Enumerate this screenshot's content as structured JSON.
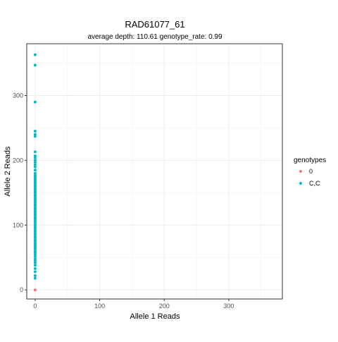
{
  "chart_data": {
    "type": "scatter",
    "title": "RAD61077_61",
    "subtitle": "average depth:  110.61  genotype_rate:  0.99",
    "xlabel": "Allele 1 Reads",
    "ylabel": "Allele 2 Reads",
    "xlim": [
      -13,
      383
    ],
    "ylim": [
      -14,
      380
    ],
    "x_ticks": [
      0,
      100,
      200,
      300
    ],
    "y_ticks": [
      0,
      100,
      200,
      300
    ],
    "x_minor": [
      50,
      150,
      250,
      350
    ],
    "y_minor": [
      50,
      150,
      250,
      350
    ],
    "grid": true,
    "legend": {
      "title": "genotypes",
      "position": "right",
      "entries": [
        "0",
        "C,C"
      ]
    },
    "series": [
      {
        "name": "0",
        "color": "#F8766D",
        "x": [
          0
        ],
        "y": [
          0
        ]
      },
      {
        "name": "C,C",
        "color": "#00BFC4",
        "x": [
          0,
          0,
          0,
          0,
          0,
          0,
          0,
          0,
          0,
          0,
          0,
          0,
          0,
          0,
          0,
          0,
          0,
          0,
          0,
          0,
          0,
          0,
          0,
          0,
          0,
          0,
          0,
          0,
          0,
          0,
          0,
          0,
          0,
          0,
          0,
          0,
          0,
          0,
          0,
          0,
          0,
          0,
          0,
          0,
          0,
          0,
          0,
          0,
          0,
          0,
          0,
          0,
          0,
          0,
          0,
          0,
          0,
          0,
          0,
          0,
          0,
          0,
          0,
          0,
          0,
          0,
          0,
          0,
          0,
          0,
          0,
          0,
          0,
          0,
          0,
          0,
          0,
          0,
          0,
          0,
          0,
          0,
          0
        ],
        "y": [
          18,
          22,
          28,
          33,
          38,
          42,
          45,
          48,
          52,
          55,
          58,
          60,
          63,
          65,
          68,
          70,
          72,
          75,
          77,
          80,
          82,
          85,
          87,
          90,
          92,
          95,
          97,
          100,
          102,
          105,
          107,
          110,
          112,
          115,
          117,
          120,
          122,
          125,
          127,
          130,
          132,
          135,
          137,
          140,
          142,
          145,
          147,
          150,
          152,
          155,
          157,
          160,
          162,
          165,
          167,
          170,
          172,
          175,
          177,
          180,
          185,
          190,
          193,
          197,
          200,
          204,
          207,
          213,
          237,
          240,
          245,
          290,
          347,
          363,
          100,
          110,
          120,
          130,
          140,
          150,
          160,
          170,
          180
        ]
      }
    ]
  }
}
